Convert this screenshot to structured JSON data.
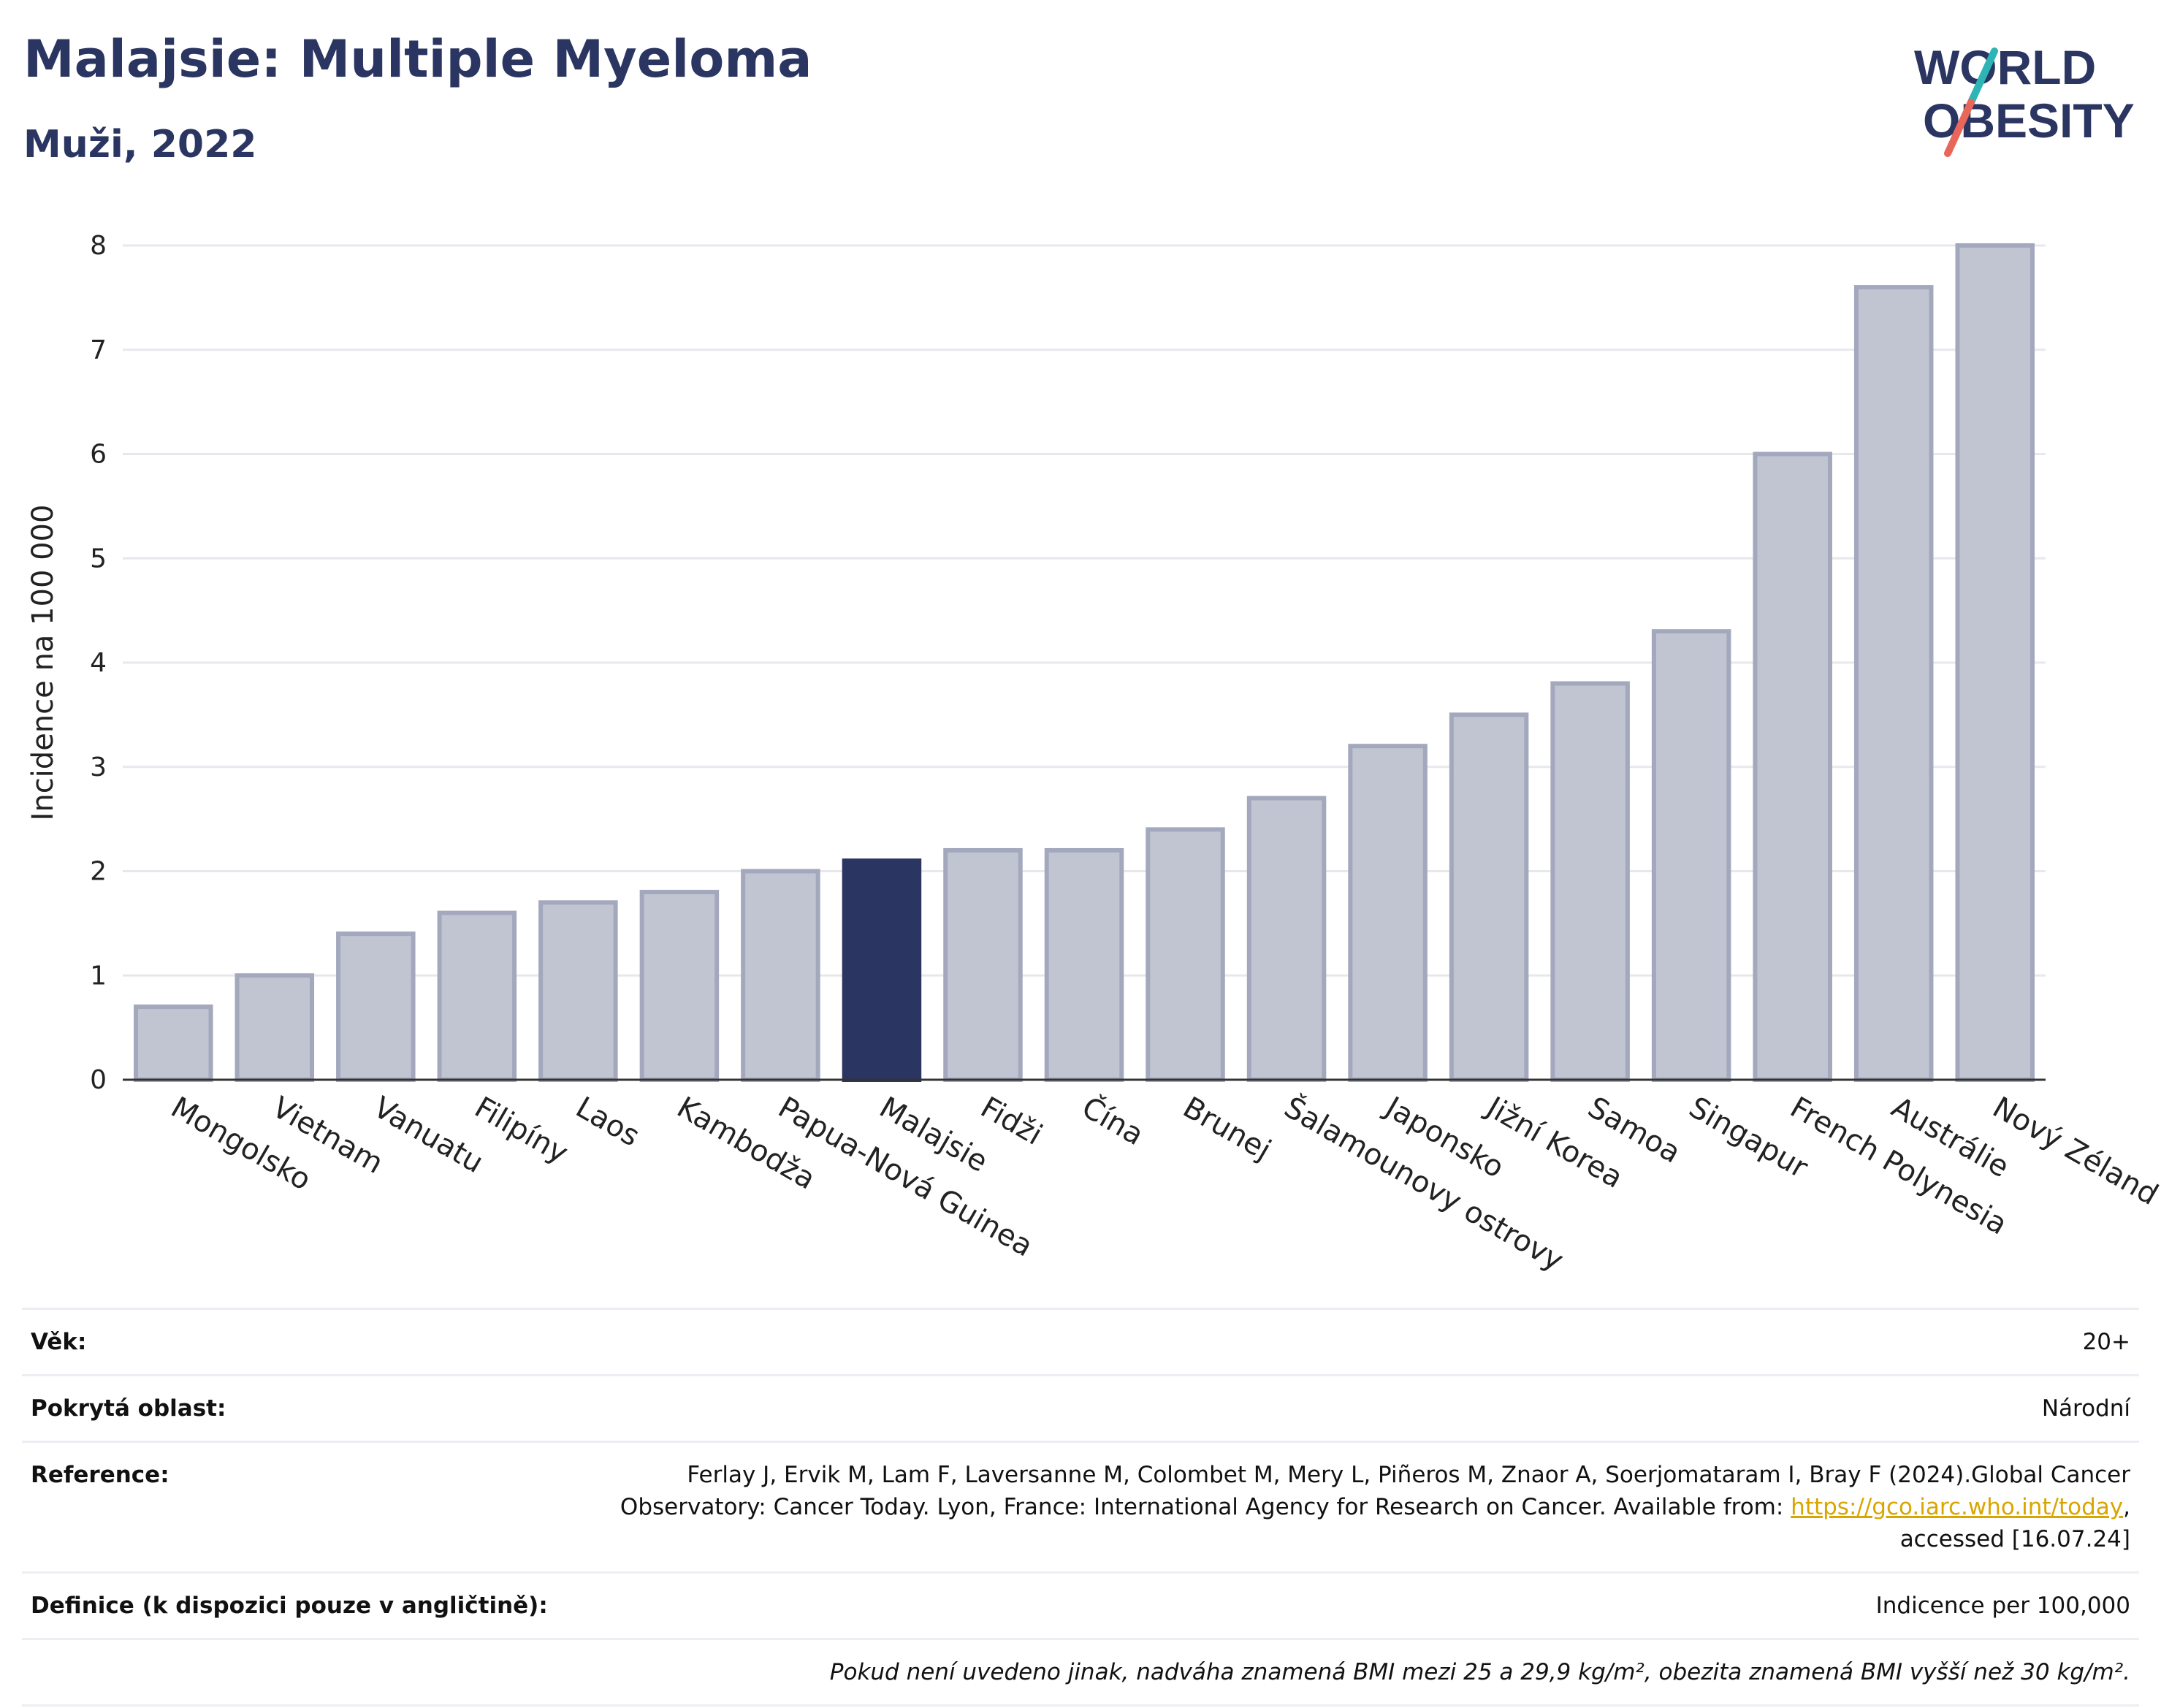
{
  "header": {
    "title": "Malajsie: Multiple Myeloma",
    "subtitle": "Muži, 2022"
  },
  "logo": {
    "line1": "WORLD",
    "line2": "OBESITY",
    "accent_teal": "#2db4b4",
    "accent_red": "#e8675a"
  },
  "chart_data": {
    "type": "bar",
    "ylabel": "Incidence na 100 000",
    "xlabel": "",
    "ylim": [
      0,
      8
    ],
    "yticks": [
      0,
      1,
      2,
      3,
      4,
      5,
      6,
      7,
      8
    ],
    "grid": true,
    "categories": [
      "Mongolsko",
      "Vietnam",
      "Vanuatu",
      "Filipíny",
      "Laos",
      "Kambodža",
      "Papua-Nová Guinea",
      "Malajsie",
      "Fidži",
      "Čína",
      "Brunej",
      "Šalamounovy ostrovy",
      "Japonsko",
      "Jižní Korea",
      "Samoa",
      "Singapur",
      "French Polynesia",
      "Austrálie",
      "Nový Zéland"
    ],
    "values": [
      0.7,
      1.0,
      1.4,
      1.6,
      1.7,
      1.8,
      2.0,
      2.1,
      2.2,
      2.2,
      2.4,
      2.7,
      3.2,
      3.5,
      3.8,
      4.3,
      6.0,
      7.6,
      8.0
    ],
    "highlight": "Malajsie",
    "colors": {
      "bar": "#c1c5d2",
      "bar_edge": "#a3a8bd",
      "highlight": "#2b3561",
      "grid": "#e6e8ee"
    }
  },
  "info": {
    "rows": [
      {
        "key": "Věk:",
        "value": "20+"
      },
      {
        "key": "Pokrytá oblast:",
        "value": "Národní"
      }
    ],
    "reference": {
      "key": "Reference:",
      "text1": "Ferlay J, Ervik M, Lam F, Laversanne M, Colombet M, Mery L, Piñeros M, Znaor A, Soerjomataram I, Bray F (2024).Global Cancer Observatory: Cancer Today. Lyon, France: International Agency for Research on Cancer. Available from: ",
      "link": "https://gco.iarc.who.int/today",
      "text2": ", accessed [16.07.24]"
    },
    "definition": {
      "key": "Definice (k dispozici pouze v angličtině):",
      "value": "Indicence per 100,000"
    },
    "note": "Pokud není uvedeno jinak, nadváha znamená BMI mezi 25 a 29,9 kg/m², obezita znamená BMI vyšší než 30 kg/m²."
  }
}
